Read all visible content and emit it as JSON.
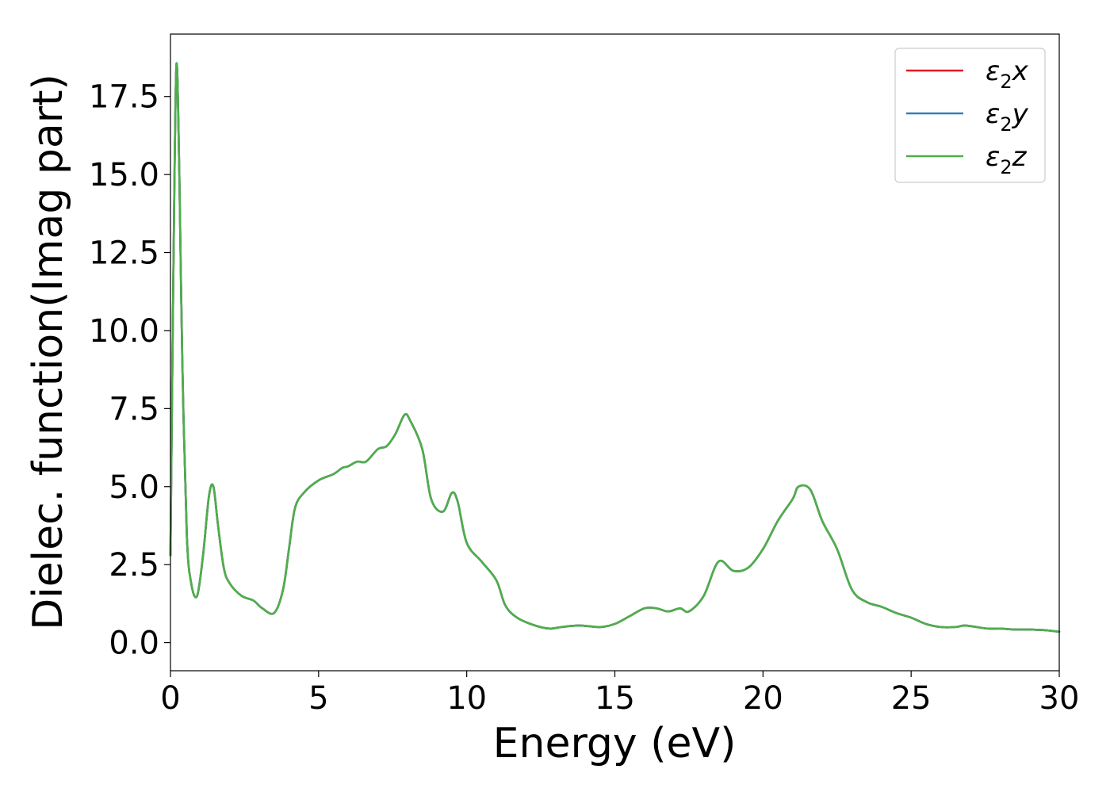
{
  "chart_data": {
    "type": "line",
    "title": "",
    "xlabel": "Energy (eV)",
    "ylabel": "Dielec. function(Imag part)",
    "xlim": [
      0,
      30
    ],
    "ylim": [
      -0.9,
      19.5
    ],
    "xticks": [
      0,
      5,
      10,
      15,
      20,
      25,
      30
    ],
    "xtick_labels": [
      "0",
      "5",
      "10",
      "15",
      "20",
      "25",
      "30"
    ],
    "yticks": [
      0.0,
      2.5,
      5.0,
      7.5,
      10.0,
      12.5,
      15.0,
      17.5
    ],
    "ytick_labels": [
      "0.0",
      "2.5",
      "5.0",
      "7.5",
      "10.0",
      "12.5",
      "15.0",
      "17.5"
    ],
    "grid": false,
    "legend_position": "top-right",
    "series": [
      {
        "name": "ε2x",
        "name_base": "ε",
        "name_sub": "2",
        "name_suffix": "x",
        "color": "#e41a1c",
        "x": [
          0,
          0.1,
          0.2,
          0.3,
          0.4,
          0.55,
          0.7,
          0.9,
          1.1,
          1.3,
          1.45,
          1.6,
          1.8,
          2.0,
          2.4,
          2.8,
          3.1,
          3.5,
          3.8,
          4.0,
          4.2,
          4.5,
          5.0,
          5.5,
          5.8,
          6.0,
          6.3,
          6.6,
          7.0,
          7.3,
          7.6,
          7.9,
          8.1,
          8.5,
          8.8,
          9.2,
          9.5,
          9.7,
          10.0,
          10.5,
          11.0,
          11.3,
          11.7,
          12.3,
          12.8,
          13.2,
          13.8,
          14.5,
          15.0,
          15.5,
          16.0,
          16.4,
          16.8,
          17.2,
          17.5,
          18.0,
          18.5,
          19.0,
          19.5,
          20.0,
          20.5,
          21.0,
          21.2,
          21.6,
          22.0,
          22.5,
          23.0,
          23.5,
          24.0,
          24.5,
          25.0,
          25.5,
          26.0,
          26.5,
          26.8,
          27.2,
          27.6,
          28.0,
          28.5,
          29.0,
          29.5,
          30.0
        ],
        "values": [
          2.8,
          12.0,
          18.5,
          15.0,
          9.0,
          3.5,
          1.9,
          1.5,
          2.8,
          4.7,
          5.0,
          3.8,
          2.4,
          1.9,
          1.5,
          1.35,
          1.1,
          0.95,
          1.7,
          3.0,
          4.3,
          4.8,
          5.2,
          5.4,
          5.6,
          5.65,
          5.8,
          5.8,
          6.2,
          6.3,
          6.7,
          7.3,
          7.1,
          6.2,
          4.6,
          4.2,
          4.8,
          4.5,
          3.2,
          2.6,
          2.0,
          1.2,
          0.8,
          0.55,
          0.45,
          0.5,
          0.55,
          0.5,
          0.6,
          0.85,
          1.1,
          1.1,
          1.0,
          1.1,
          1.0,
          1.5,
          2.6,
          2.3,
          2.4,
          3.0,
          3.9,
          4.6,
          5.0,
          4.9,
          3.9,
          3.0,
          1.7,
          1.3,
          1.15,
          0.95,
          0.8,
          0.6,
          0.5,
          0.5,
          0.55,
          0.5,
          0.45,
          0.45,
          0.42,
          0.42,
          0.4,
          0.35
        ]
      },
      {
        "name": "ε2y",
        "name_base": "ε",
        "name_sub": "2",
        "name_suffix": "y",
        "color": "#377eb8",
        "x": [
          0,
          0.1,
          0.2,
          0.3,
          0.4,
          0.55,
          0.7,
          0.9,
          1.1,
          1.3,
          1.45,
          1.6,
          1.8,
          2.0,
          2.4,
          2.8,
          3.1,
          3.5,
          3.8,
          4.0,
          4.2,
          4.5,
          5.0,
          5.5,
          5.8,
          6.0,
          6.3,
          6.6,
          7.0,
          7.3,
          7.6,
          7.9,
          8.1,
          8.5,
          8.8,
          9.2,
          9.5,
          9.7,
          10.0,
          10.5,
          11.0,
          11.3,
          11.7,
          12.3,
          12.8,
          13.2,
          13.8,
          14.5,
          15.0,
          15.5,
          16.0,
          16.4,
          16.8,
          17.2,
          17.5,
          18.0,
          18.5,
          19.0,
          19.5,
          20.0,
          20.5,
          21.0,
          21.2,
          21.6,
          22.0,
          22.5,
          23.0,
          23.5,
          24.0,
          24.5,
          25.0,
          25.5,
          26.0,
          26.5,
          26.8,
          27.2,
          27.6,
          28.0,
          28.5,
          29.0,
          29.5,
          30.0
        ],
        "values": [
          2.8,
          12.0,
          18.5,
          15.0,
          9.0,
          3.5,
          1.9,
          1.5,
          2.8,
          4.7,
          5.0,
          3.8,
          2.4,
          1.9,
          1.5,
          1.35,
          1.1,
          0.95,
          1.7,
          3.0,
          4.3,
          4.8,
          5.2,
          5.4,
          5.6,
          5.65,
          5.8,
          5.8,
          6.2,
          6.3,
          6.7,
          7.3,
          7.1,
          6.2,
          4.6,
          4.2,
          4.8,
          4.5,
          3.2,
          2.6,
          2.0,
          1.2,
          0.8,
          0.55,
          0.45,
          0.5,
          0.55,
          0.5,
          0.6,
          0.85,
          1.1,
          1.1,
          1.0,
          1.1,
          1.0,
          1.5,
          2.6,
          2.3,
          2.4,
          3.0,
          3.9,
          4.6,
          5.0,
          4.9,
          3.9,
          3.0,
          1.7,
          1.3,
          1.15,
          0.95,
          0.8,
          0.6,
          0.5,
          0.5,
          0.55,
          0.5,
          0.45,
          0.45,
          0.42,
          0.42,
          0.4,
          0.35
        ]
      },
      {
        "name": "ε2z",
        "name_base": "ε",
        "name_sub": "2",
        "name_suffix": "z",
        "color": "#4daf4a",
        "x": [
          0,
          0.1,
          0.2,
          0.3,
          0.4,
          0.55,
          0.7,
          0.9,
          1.1,
          1.3,
          1.45,
          1.6,
          1.8,
          2.0,
          2.4,
          2.8,
          3.1,
          3.5,
          3.8,
          4.0,
          4.2,
          4.5,
          5.0,
          5.5,
          5.8,
          6.0,
          6.3,
          6.6,
          7.0,
          7.3,
          7.6,
          7.9,
          8.1,
          8.5,
          8.8,
          9.2,
          9.5,
          9.7,
          10.0,
          10.5,
          11.0,
          11.3,
          11.7,
          12.3,
          12.8,
          13.2,
          13.8,
          14.5,
          15.0,
          15.5,
          16.0,
          16.4,
          16.8,
          17.2,
          17.5,
          18.0,
          18.5,
          19.0,
          19.5,
          20.0,
          20.5,
          21.0,
          21.2,
          21.6,
          22.0,
          22.5,
          23.0,
          23.5,
          24.0,
          24.5,
          25.0,
          25.5,
          26.0,
          26.5,
          26.8,
          27.2,
          27.6,
          28.0,
          28.5,
          29.0,
          29.5,
          30.0
        ],
        "values": [
          2.8,
          12.0,
          18.5,
          15.0,
          9.0,
          3.5,
          1.9,
          1.5,
          2.8,
          4.7,
          5.0,
          3.8,
          2.4,
          1.9,
          1.5,
          1.35,
          1.1,
          0.95,
          1.7,
          3.0,
          4.3,
          4.8,
          5.2,
          5.4,
          5.6,
          5.65,
          5.8,
          5.8,
          6.2,
          6.3,
          6.7,
          7.3,
          7.1,
          6.2,
          4.6,
          4.2,
          4.8,
          4.5,
          3.2,
          2.6,
          2.0,
          1.2,
          0.8,
          0.55,
          0.45,
          0.5,
          0.55,
          0.5,
          0.6,
          0.85,
          1.1,
          1.1,
          1.0,
          1.1,
          1.0,
          1.5,
          2.6,
          2.3,
          2.4,
          3.0,
          3.9,
          4.6,
          5.0,
          4.9,
          3.9,
          3.0,
          1.7,
          1.3,
          1.15,
          0.95,
          0.8,
          0.6,
          0.5,
          0.5,
          0.55,
          0.5,
          0.45,
          0.45,
          0.42,
          0.42,
          0.4,
          0.35
        ]
      }
    ]
  }
}
